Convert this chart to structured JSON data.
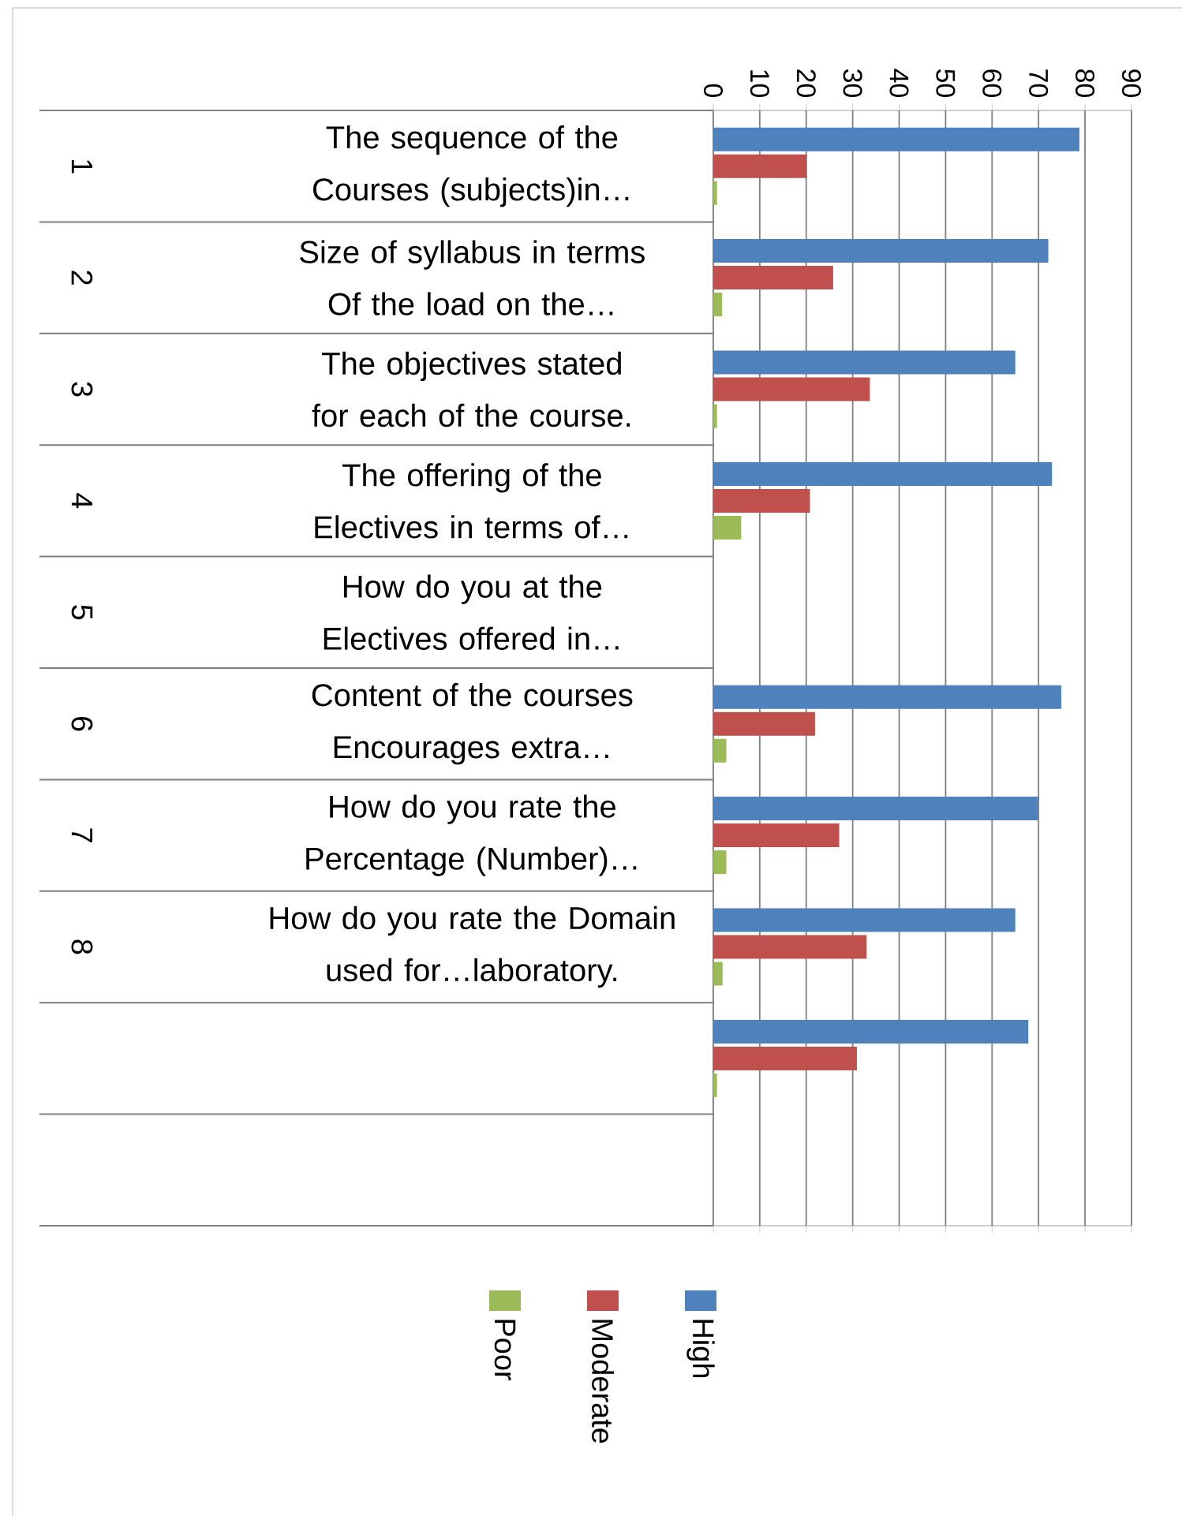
{
  "chart_data": {
    "type": "bar",
    "orientation": "horizontal",
    "categories": [
      "The sequence of the Courses (subjects)in…",
      "Size of syllabus in terms Of the load on the…",
      "The objectives stated for each of the course.",
      "The offering of the Electives in terms of…",
      "How do you at the Electives offered in…",
      "Content of the courses Encourages extra…",
      "How do you rate the Percentage (Number)…",
      "How do you rate the Domain used for…laboratory.",
      null,
      null
    ],
    "series": [
      {
        "name": "High",
        "color": "#4f81bd",
        "values": [
          78.8,
          72.1,
          65,
          72.9,
          null,
          74.9,
          69.9,
          65,
          67.8,
          null
        ]
      },
      {
        "name": "Moderate",
        "color": "#c0504d",
        "values": [
          20.1,
          25.8,
          33.7,
          20.8,
          null,
          21.9,
          27.1,
          33,
          30.9,
          null
        ]
      },
      {
        "name": "Poor",
        "color": "#9bbb59",
        "values": [
          0.8,
          1.9,
          0.8,
          6.0,
          null,
          2.8,
          2.8,
          2.0,
          0.8,
          null
        ]
      }
    ],
    "xlim": [
      0,
      90
    ],
    "xticks": [
      0,
      10,
      20,
      30,
      40,
      50,
      60,
      70,
      80,
      90
    ],
    "annotations": [
      "1",
      "2",
      "3",
      "4",
      "5",
      "6",
      "7",
      "8"
    ],
    "grid": "x",
    "legend": "bottom"
  }
}
